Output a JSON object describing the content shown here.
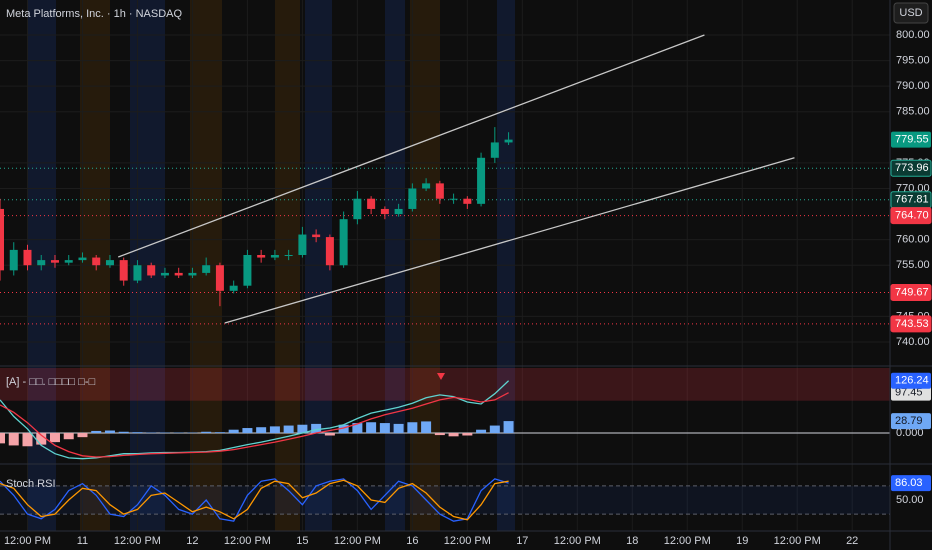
{
  "header": {
    "title": "Meta Platforms, Inc. · 1h · NASDAQ",
    "currency": "USD"
  },
  "x_axis": {
    "xlim": [
      0,
      129.5
    ],
    "x": [
      0,
      2,
      4,
      6,
      8,
      10,
      12,
      14,
      16,
      18,
      20,
      22,
      24,
      26,
      28,
      30,
      32,
      34,
      36,
      38,
      40,
      42,
      44,
      46,
      48,
      50,
      52,
      54,
      56,
      58,
      60,
      62,
      64,
      66,
      68,
      70,
      72,
      74
    ],
    "xticks": [
      {
        "value": 4,
        "label": "12:00 PM"
      },
      {
        "value": 12,
        "label": "11"
      },
      {
        "value": 20,
        "label": "12:00 PM"
      },
      {
        "value": 28,
        "label": "12"
      },
      {
        "value": 36,
        "label": "12:00 PM"
      },
      {
        "value": 44,
        "label": "15"
      },
      {
        "value": 52,
        "label": "12:00 PM"
      },
      {
        "value": 60,
        "label": "16"
      },
      {
        "value": 68,
        "label": "12:00 PM"
      },
      {
        "value": 76,
        "label": "17"
      },
      {
        "value": 84,
        "label": "12:00 PM"
      },
      {
        "value": 92,
        "label": "18"
      },
      {
        "value": 100,
        "label": "12:00 PM"
      },
      {
        "value": 108,
        "label": "19"
      },
      {
        "value": 116,
        "label": "12:00 PM"
      },
      {
        "value": 124,
        "label": "22"
      }
    ]
  },
  "chart_data": [
    {
      "type": "candlestick",
      "up_color": "#089981",
      "down_color": "#f23645",
      "open": [
        766,
        754,
        758,
        755,
        756,
        755.5,
        756,
        756.5,
        755,
        756,
        752,
        755,
        753,
        753.5,
        753,
        753.5,
        755,
        750,
        751,
        757,
        756.5,
        757,
        757,
        761,
        760.5,
        755,
        764,
        768,
        766,
        765,
        766,
        770,
        771,
        768,
        768,
        767,
        776,
        779
      ],
      "high": [
        768,
        759.5,
        759,
        757,
        757,
        757,
        757.5,
        757,
        757,
        756.5,
        756,
        755.5,
        754.5,
        754.5,
        754.5,
        756.5,
        755.5,
        752,
        758,
        758,
        758,
        758,
        762.5,
        762,
        761,
        765.5,
        769.5,
        768.5,
        766.5,
        767,
        771,
        772,
        771.5,
        769,
        768.5,
        777,
        782,
        781
      ],
      "low": [
        752,
        753,
        754,
        754,
        754.5,
        755,
        755.5,
        754,
        754.5,
        751,
        751.5,
        752.5,
        752.5,
        752.5,
        752.5,
        753,
        747,
        749.5,
        750.5,
        755.5,
        756,
        756,
        756.5,
        759.5,
        754,
        754.5,
        763,
        765,
        764,
        764.5,
        765.5,
        769.5,
        767,
        767,
        766,
        766.5,
        775,
        778.5
      ],
      "close": [
        754,
        758,
        755,
        756,
        755.5,
        756,
        756.5,
        755,
        756,
        752,
        755,
        753,
        753.5,
        753,
        753.5,
        755,
        750,
        751,
        757,
        756.5,
        757,
        757,
        761,
        760.5,
        755,
        764,
        768,
        766,
        765,
        766,
        770,
        771,
        768,
        768,
        767,
        776,
        779,
        779.55
      ],
      "ylim": [
        735.5,
        806.84
      ],
      "yticks": [
        {
          "value": 740,
          "label": "740.00"
        },
        {
          "value": 745,
          "label": "745.00"
        },
        {
          "value": 755,
          "label": "755.00"
        },
        {
          "value": 760,
          "label": "760.00"
        },
        {
          "value": 770,
          "label": "770.00"
        },
        {
          "value": 775,
          "label": "775.00"
        },
        {
          "value": 785,
          "label": "785.00"
        },
        {
          "value": 790,
          "label": "790.00"
        },
        {
          "value": 795,
          "label": "795.00"
        },
        {
          "value": 800,
          "label": "800.00"
        }
      ],
      "levels": [
        {
          "value": 773.96,
          "label": "773.96",
          "color": "#22ab94"
        },
        {
          "value": 767.81,
          "label": "767.81",
          "color": "#22ab94"
        },
        {
          "value": 764.7,
          "label": "764.70",
          "color": "#f23645"
        },
        {
          "value": 749.67,
          "label": "749.67",
          "color": "#f23645"
        },
        {
          "value": 743.53,
          "label": "743.53",
          "color": "#f23645"
        }
      ],
      "trendlines": [
        {
          "x": [
            17.2,
            102.5
          ],
          "y": [
            756.6,
            800
          ]
        },
        {
          "x": [
            32.7,
            115.6
          ],
          "y": [
            743.7,
            776
          ]
        }
      ],
      "grid": true
    },
    {
      "type": "macd",
      "title": "[A] - □□. □□□□ □-□",
      "ylim": [
        -70,
        157
      ],
      "zone": [
        78,
        157
      ],
      "yticks": [
        {
          "value": 0,
          "label": "0.000"
        }
      ],
      "histogram": {
        "up_color": "#6fa8f5",
        "down_color": "#f5a3a8",
        "values": [
          -25,
          -30,
          -32,
          -28,
          -22,
          -15,
          -10,
          5,
          6,
          3,
          2,
          1,
          1,
          1,
          1,
          3,
          2,
          8,
          12,
          14,
          16,
          18,
          20,
          22,
          -6,
          20,
          24,
          26,
          24,
          22,
          26,
          28,
          -5,
          -8,
          -6,
          8,
          18,
          28.79
        ]
      },
      "series": [
        {
          "color": "#5fd3d0",
          "values": [
            80,
            40,
            10,
            -30,
            -50,
            -60,
            -62,
            -60,
            -55,
            -50,
            -50,
            -48,
            -47,
            -47,
            -46,
            -45,
            -42,
            -35,
            -28,
            -22,
            -15,
            -8,
            0,
            8,
            12,
            20,
            35,
            48,
            55,
            62,
            72,
            85,
            92,
            88,
            75,
            70,
            95,
            126.24
          ]
        },
        {
          "color": "#f23645",
          "values": [
            68,
            50,
            25,
            -5,
            -30,
            -45,
            -55,
            -58,
            -57,
            -54,
            -52,
            -50,
            -49,
            -48,
            -47,
            -46,
            -44,
            -40,
            -34,
            -28,
            -22,
            -15,
            -8,
            0,
            6,
            12,
            22,
            34,
            44,
            52,
            60,
            70,
            80,
            86,
            82,
            75,
            80,
            97.45
          ]
        }
      ]
    },
    {
      "type": "line",
      "title": "Stoch RSI",
      "ylim": [
        -13.8,
        124.5
      ],
      "band": [
        20,
        80
      ],
      "yticks": [
        {
          "value": 50,
          "label": "50.00"
        }
      ],
      "series": [
        {
          "color": "#2962ff",
          "values": [
            90,
            60,
            20,
            10,
            30,
            70,
            85,
            60,
            20,
            15,
            40,
            80,
            60,
            30,
            20,
            50,
            10,
            5,
            60,
            90,
            95,
            70,
            40,
            80,
            90,
            95,
            70,
            30,
            60,
            90,
            80,
            50,
            20,
            5,
            10,
            70,
            95,
            86.03
          ]
        },
        {
          "color": "#ff9800",
          "values": [
            85,
            75,
            40,
            15,
            20,
            50,
            75,
            70,
            40,
            20,
            30,
            60,
            65,
            45,
            25,
            35,
            25,
            10,
            30,
            75,
            90,
            85,
            55,
            65,
            85,
            92,
            80,
            50,
            45,
            75,
            85,
            65,
            35,
            15,
            8,
            40,
            85,
            90
          ]
        }
      ]
    }
  ]
}
